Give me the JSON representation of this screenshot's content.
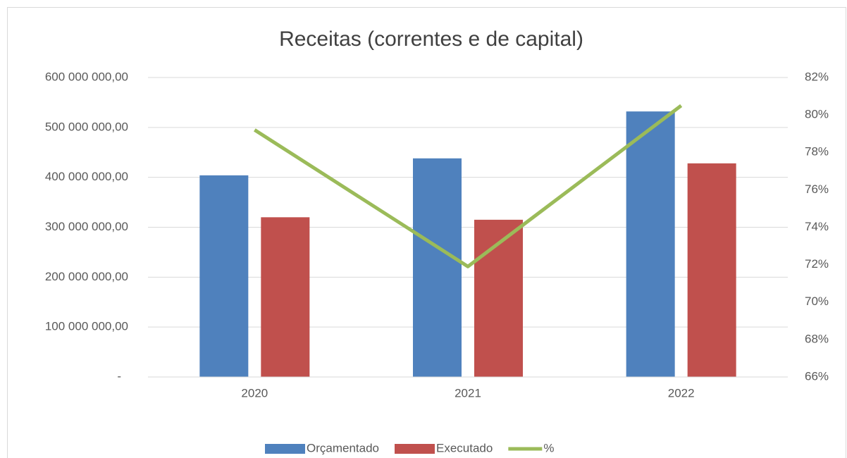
{
  "chart_data": {
    "type": "bar_line",
    "title": "Receitas (correntes e de capital)",
    "categories": [
      "2020",
      "2021",
      "2022"
    ],
    "series": [
      {
        "name": "Orçamentado",
        "type": "bar",
        "color": "#4f81bd",
        "values": [
          404000000,
          438000000,
          532000000
        ]
      },
      {
        "name": "Executado",
        "type": "bar",
        "color": "#c0504d",
        "values": [
          320000000,
          315000000,
          428000000
        ]
      },
      {
        "name": "%",
        "type": "line",
        "axis": "y2",
        "color": "#9bbb59",
        "values": [
          79.2,
          71.9,
          80.5
        ]
      }
    ],
    "ylim": [
      0,
      600000000
    ],
    "yticks": [
      {
        "value": 0,
        "label": "-"
      },
      {
        "value": 100000000,
        "label": "100 000 000,00"
      },
      {
        "value": 200000000,
        "label": "200 000 000,00"
      },
      {
        "value": 300000000,
        "label": "300 000 000,00"
      },
      {
        "value": 400000000,
        "label": "400 000 000,00"
      },
      {
        "value": 500000000,
        "label": "500 000 000,00"
      },
      {
        "value": 600000000,
        "label": "600 000 000,00"
      }
    ],
    "y2lim": [
      66,
      82
    ],
    "y2ticks": [
      {
        "value": 66,
        "label": "66%"
      },
      {
        "value": 68,
        "label": "68%"
      },
      {
        "value": 70,
        "label": "70%"
      },
      {
        "value": 72,
        "label": "72%"
      },
      {
        "value": 74,
        "label": "74%"
      },
      {
        "value": 76,
        "label": "76%"
      },
      {
        "value": 78,
        "label": "78%"
      },
      {
        "value": 80,
        "label": "80%"
      },
      {
        "value": 82,
        "label": "82%"
      }
    ],
    "grid": true,
    "legend": "bottom"
  }
}
